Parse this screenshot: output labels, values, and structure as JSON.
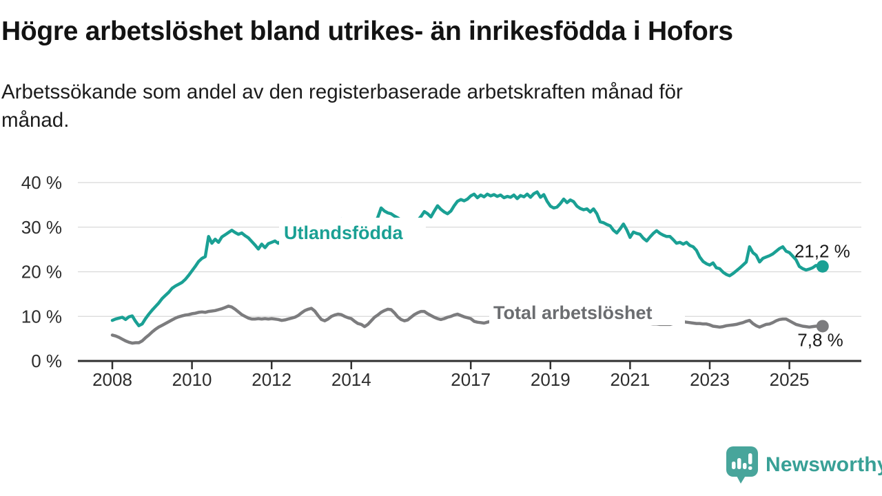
{
  "title": "Högre arbetslöshet bland utrikes- än inrikesfödda i Hofors",
  "subtitle": "Arbetssökande som andel av den registerbaserade arbetskraften månad för\nmånad.",
  "logo": {
    "text": "Newsworthy"
  },
  "colors": {
    "accent_teal": "#1aa094",
    "line_gray": "#7c7c7e",
    "label_gray": "#6b6d70",
    "axis": "#2f2f2f",
    "grid": "#d8d8d8",
    "tick_text": "#2d2d2d",
    "annotation_text": "#1a1a1a",
    "logo_teal": "#48a59b",
    "logo_text_teal": "#38a096"
  },
  "chart_data": {
    "type": "line",
    "x_unit": "month",
    "x_start": "2008-01",
    "x_end": "2025-11",
    "ylim": [
      0,
      40
    ],
    "grid": "horizontal",
    "legend_position": "inline-labels",
    "x_ticks": [
      2008,
      2010,
      2012,
      2014,
      2017,
      2019,
      2021,
      2023,
      2025
    ],
    "y_ticks": [
      {
        "value": 0,
        "label": "0 %"
      },
      {
        "value": 10,
        "label": "10 %"
      },
      {
        "value": 20,
        "label": "20 %"
      },
      {
        "value": 30,
        "label": "30 %"
      },
      {
        "value": 40,
        "label": "40 %"
      }
    ],
    "series": [
      {
        "name": "Utlandsfödda",
        "color": "#1aa094",
        "end_label": "21,2 %",
        "end_value": 21.2,
        "values": [
          9.1,
          9.4,
          9.6,
          9.8,
          9.3,
          9.9,
          10.1,
          8.9,
          7.9,
          8.3,
          9.5,
          10.5,
          11.4,
          12.2,
          13.0,
          14.0,
          14.7,
          15.4,
          16.3,
          16.8,
          17.2,
          17.6,
          18.3,
          19.2,
          20.2,
          21.2,
          22.3,
          23.0,
          23.4,
          27.9,
          26.4,
          27.3,
          26.6,
          27.8,
          28.3,
          28.8,
          29.3,
          28.8,
          28.4,
          28.7,
          28.1,
          27.6,
          26.8,
          26.0,
          25.1,
          26.2,
          25.4,
          26.3,
          26.6,
          26.9,
          26.4,
          27.0,
          26.6,
          27.1,
          27.5,
          27.2,
          27.8,
          28.2,
          28.6,
          29.0,
          29.3,
          29.7,
          30.0,
          30.4,
          30.2,
          30.7,
          31.0,
          31.3,
          31.5,
          31.8,
          31.2,
          30.8,
          30.7,
          30.4,
          30.2,
          30.5,
          30.3,
          30.6,
          30.4,
          31.0,
          32.2,
          34.3,
          33.6,
          33.2,
          33.0,
          32.5,
          32.1,
          31.6,
          31.3,
          30.8,
          30.6,
          30.9,
          31.5,
          32.4,
          33.5,
          33.0,
          32.3,
          33.6,
          34.8,
          34.0,
          33.4,
          33.0,
          33.6,
          34.8,
          35.8,
          36.2,
          35.9,
          36.3,
          37.0,
          37.4,
          36.6,
          37.2,
          36.8,
          37.4,
          37.0,
          37.3,
          36.9,
          37.2,
          36.6,
          36.9,
          36.7,
          37.2,
          36.4,
          37.1,
          36.8,
          37.4,
          36.7,
          37.5,
          37.9,
          36.7,
          37.3,
          35.8,
          34.7,
          34.3,
          34.5,
          35.3,
          36.3,
          35.5,
          36.1,
          35.7,
          34.7,
          34.2,
          33.9,
          34.1,
          33.4,
          34.1,
          33.0,
          31.2,
          31.0,
          30.6,
          30.3,
          29.3,
          28.7,
          29.6,
          30.7,
          29.4,
          27.7,
          28.9,
          28.6,
          28.4,
          27.5,
          26.9,
          27.8,
          28.6,
          29.2,
          28.6,
          28.2,
          27.9,
          27.9,
          27.2,
          26.4,
          26.6,
          26.2,
          26.6,
          25.9,
          25.6,
          24.8,
          23.3,
          22.3,
          21.8,
          21.5,
          22.0,
          20.9,
          20.7,
          19.9,
          19.4,
          19.1,
          19.6,
          20.2,
          20.8,
          21.5,
          22.2,
          25.6,
          24.3,
          23.7,
          22.2,
          23.0,
          23.3,
          23.6,
          24.0,
          24.6,
          25.2,
          25.6,
          24.6,
          24.3,
          23.5,
          22.7,
          21.2,
          20.7,
          20.4,
          20.6,
          20.9,
          21.4,
          21.3,
          21.2
        ]
      },
      {
        "name": "Total arbetslöshet",
        "color": "#7c7c7e",
        "label_color": "#6b6d70",
        "end_label": "7,8 %",
        "end_value": 7.8,
        "values": [
          5.8,
          5.6,
          5.3,
          4.9,
          4.5,
          4.2,
          4.0,
          4.1,
          4.1,
          4.5,
          5.2,
          5.8,
          6.5,
          7.1,
          7.6,
          8.0,
          8.4,
          8.8,
          9.2,
          9.6,
          9.9,
          10.1,
          10.3,
          10.4,
          10.6,
          10.7,
          10.9,
          11.0,
          10.9,
          11.1,
          11.2,
          11.3,
          11.5,
          11.7,
          12.0,
          12.3,
          12.1,
          11.6,
          11.0,
          10.4,
          10.0,
          9.6,
          9.4,
          9.4,
          9.5,
          9.4,
          9.5,
          9.4,
          9.5,
          9.4,
          9.3,
          9.1,
          9.2,
          9.4,
          9.6,
          9.8,
          10.2,
          10.8,
          11.3,
          11.6,
          11.8,
          11.2,
          10.2,
          9.3,
          9.0,
          9.4,
          10.0,
          10.3,
          10.5,
          10.4,
          10.0,
          9.7,
          9.5,
          8.9,
          8.4,
          8.2,
          7.7,
          8.2,
          9.0,
          9.8,
          10.3,
          10.9,
          11.3,
          11.6,
          11.5,
          10.8,
          9.9,
          9.3,
          9.0,
          9.2,
          9.8,
          10.4,
          10.8,
          11.1,
          11.1,
          10.6,
          10.2,
          9.8,
          9.5,
          9.3,
          9.5,
          9.8,
          10.0,
          10.3,
          10.5,
          10.2,
          9.9,
          9.7,
          9.5,
          8.9,
          8.7,
          8.6,
          8.5,
          8.7,
          8.9,
          9.1,
          9.2,
          9.1,
          9.0,
          8.9,
          8.8,
          8.6,
          8.5,
          8.4,
          8.5,
          8.7,
          8.9,
          9.0,
          8.9,
          8.8,
          8.7,
          8.6,
          8.6,
          8.5,
          8.5,
          8.6,
          8.7,
          8.8,
          9.0,
          9.1,
          9.0,
          8.9,
          8.8,
          8.8,
          8.9,
          9.0,
          9.2,
          9.5,
          9.7,
          9.8,
          9.7,
          9.5,
          9.3,
          9.1,
          9.0,
          8.9,
          8.9,
          8.8,
          8.7,
          8.6,
          8.5,
          8.4,
          8.4,
          8.3,
          8.3,
          8.2,
          8.2,
          8.2,
          8.2,
          8.4,
          8.7,
          8.9,
          8.8,
          8.7,
          8.6,
          8.5,
          8.4,
          8.4,
          8.3,
          8.3,
          8.1,
          7.8,
          7.7,
          7.6,
          7.7,
          7.9,
          8.0,
          8.1,
          8.2,
          8.4,
          8.6,
          8.9,
          9.1,
          8.4,
          7.9,
          7.6,
          7.9,
          8.2,
          8.3,
          8.6,
          9.0,
          9.3,
          9.4,
          9.4,
          9.0,
          8.6,
          8.2,
          8.0,
          7.8,
          7.7,
          7.6,
          7.7,
          7.8,
          7.8,
          7.8
        ]
      }
    ]
  }
}
